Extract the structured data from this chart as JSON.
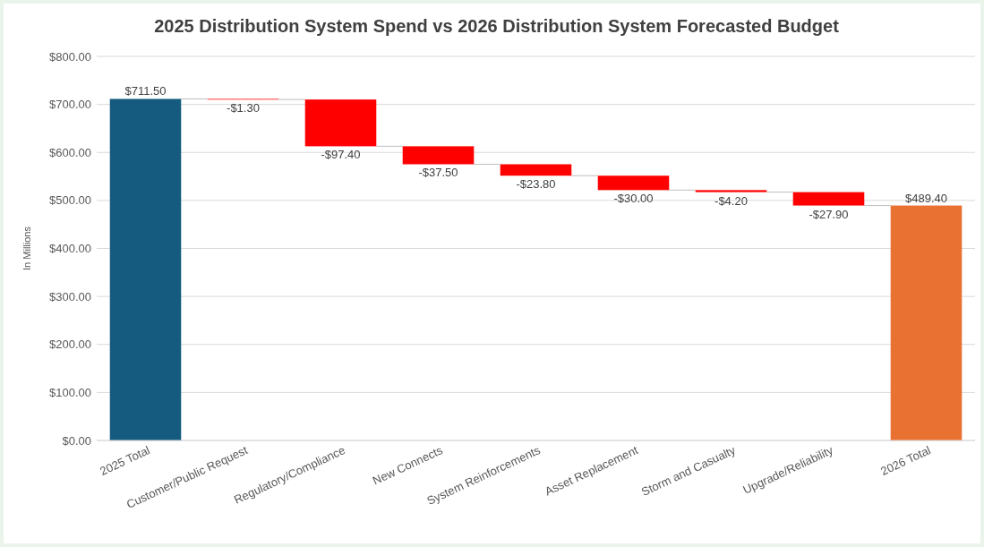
{
  "chart_data": {
    "type": "bar",
    "title": "2025 Distribution System Spend vs 2026 Distribution System Forecasted Budget",
    "ylabel": "In Millions",
    "categories": [
      "2025 Total",
      "Customer/Public Request",
      "Regulatory/Compliance",
      "New Connects",
      "System Reinforcements",
      "Asset Replacement",
      "Storm and Casualty",
      "Upgrade/Reliability",
      "2026 Total"
    ],
    "values": [
      711.5,
      -1.3,
      -97.4,
      -37.5,
      -23.8,
      -30,
      -4.2,
      -27.9,
      489.4
    ],
    "base": [
      0,
      711.5,
      710.2,
      612.8,
      575.3,
      551.5,
      521.5,
      517.3,
      0
    ],
    "colors": [
      "#155b80",
      "#ff0000",
      "#ff0000",
      "#ff0000",
      "#ff0000",
      "#ff0000",
      "#ff0000",
      "#ff0000",
      "#e97132"
    ],
    "value_labels": [
      "$711.50",
      "-$1.30",
      "-$97.40",
      "-$37.50",
      "-$23.80",
      "-$30.00",
      "-$4.20",
      "-$27.90",
      "$489.40"
    ],
    "ylim": [
      0,
      800
    ],
    "yticks": [
      {
        "value": 0,
        "label": "$0.00"
      },
      {
        "value": 100,
        "label": "$100.00"
      },
      {
        "value": 200,
        "label": "$200.00"
      },
      {
        "value": 300,
        "label": "$300.00"
      },
      {
        "value": 400,
        "label": "$400.00"
      },
      {
        "value": 500,
        "label": "$500.00"
      },
      {
        "value": 600,
        "label": "$600.00"
      },
      {
        "value": 700,
        "label": "$700.00"
      },
      {
        "value": 800,
        "label": "$800.00"
      }
    ],
    "grid": "y"
  }
}
